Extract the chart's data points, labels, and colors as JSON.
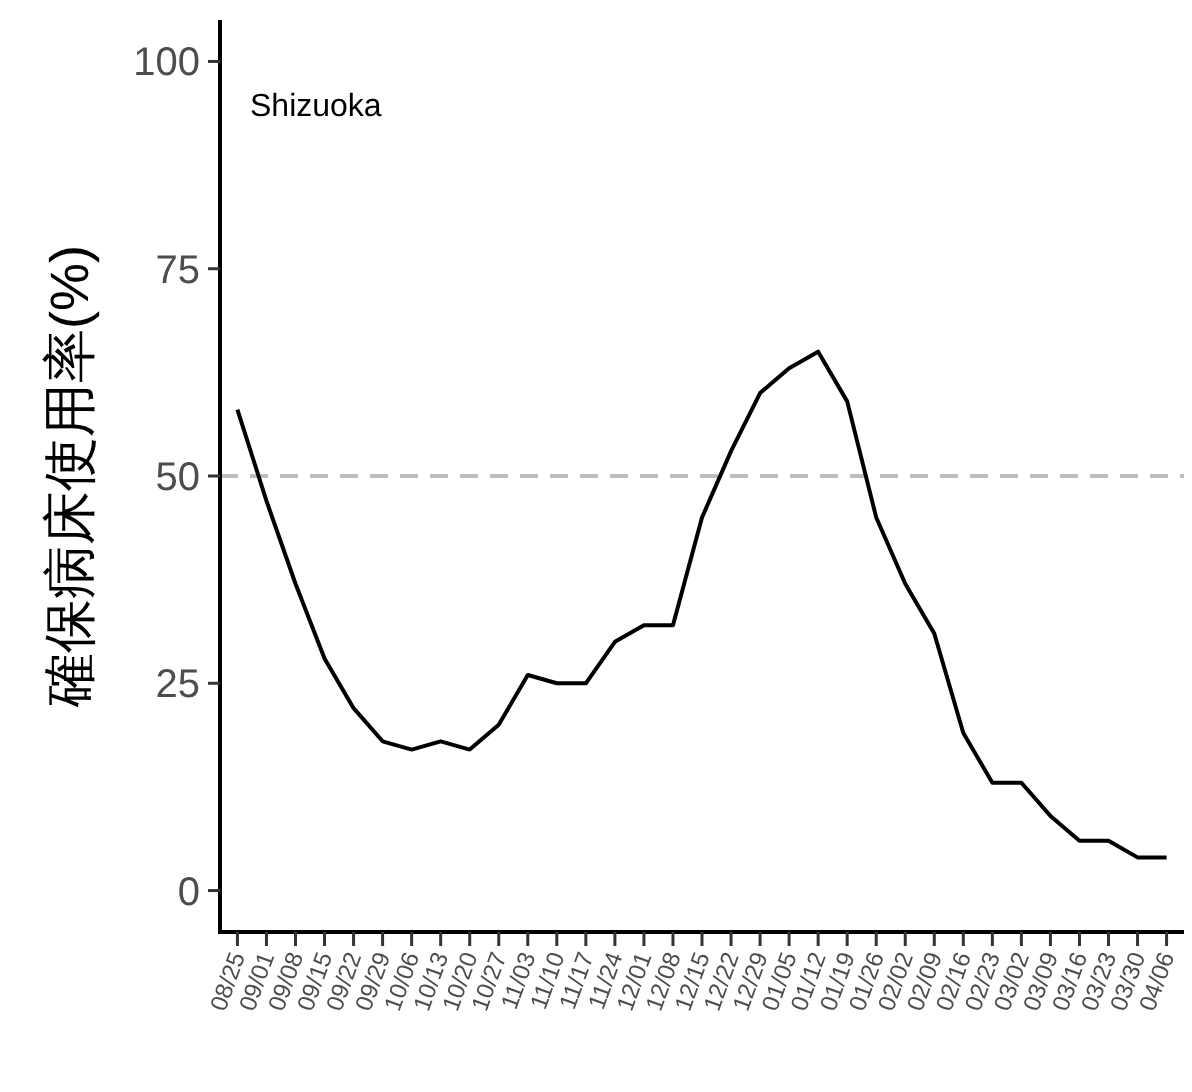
{
  "chart_data": {
    "type": "line",
    "ylabel": "確保病床使用率(%)",
    "annotations": [
      "Shizuoka"
    ],
    "categories": [
      "08/25",
      "09/01",
      "09/08",
      "09/15",
      "09/22",
      "09/29",
      "10/06",
      "10/13",
      "10/20",
      "10/27",
      "11/03",
      "11/10",
      "11/17",
      "11/24",
      "12/01",
      "12/08",
      "12/15",
      "12/22",
      "12/29",
      "01/05",
      "01/12",
      "01/19",
      "01/26",
      "02/02",
      "02/09",
      "02/16",
      "02/23",
      "03/02",
      "03/09",
      "03/16",
      "03/23",
      "03/30",
      "04/06"
    ],
    "values": [
      58,
      47,
      37,
      28,
      22,
      18,
      17,
      18,
      17,
      20,
      26,
      25,
      25,
      30,
      32,
      32,
      45,
      53,
      60,
      63,
      65,
      59,
      45,
      37,
      31,
      19,
      13,
      13,
      9,
      6,
      6,
      4,
      4
    ],
    "color": "#000000",
    "ylim": [
      -5,
      105
    ],
    "yticks": [
      0,
      25,
      50,
      75,
      100
    ],
    "ref_lines": [
      {
        "axis": "y",
        "value": 50,
        "color": "#bdbdbd",
        "line_style": "dashed"
      }
    ]
  }
}
